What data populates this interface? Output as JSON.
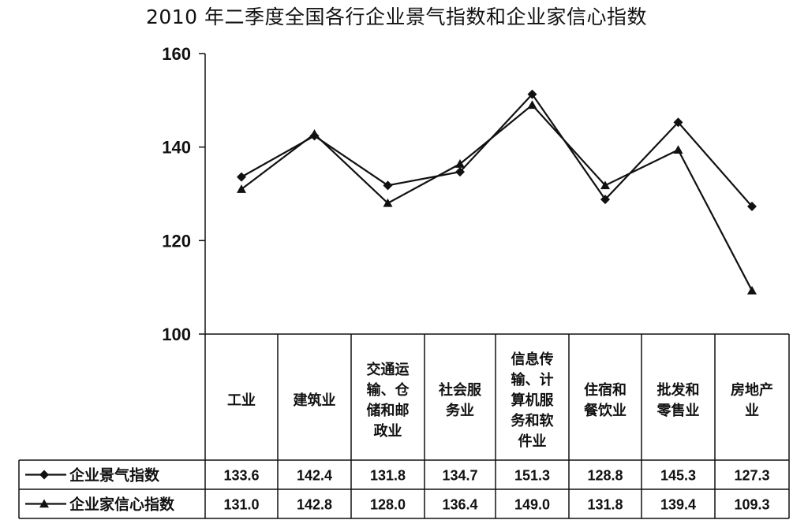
{
  "chart_data": {
    "type": "line",
    "title": "2010 年二季度全国各行企业景气指数和企业家信心指数",
    "categories": [
      [
        "工业"
      ],
      [
        "建筑业"
      ],
      [
        "交通运",
        "输、仓",
        "储和邮",
        "政业"
      ],
      [
        "社会服",
        "务业"
      ],
      [
        "信息传",
        "输、计",
        "算机服",
        "务和软",
        "件业"
      ],
      [
        "住宿和",
        "餐饮业"
      ],
      [
        "批发和",
        "零售业"
      ],
      [
        "房地产",
        "业"
      ]
    ],
    "series": [
      {
        "name": "企业景气指数",
        "marker": "diamond",
        "values": [
          133.6,
          142.4,
          131.8,
          134.7,
          151.3,
          128.8,
          145.3,
          127.3
        ],
        "labels": [
          "133.6",
          "142.4",
          "131.8",
          "134.7",
          "151.3",
          "128.8",
          "145.3",
          "127.3"
        ]
      },
      {
        "name": "企业家信心指数",
        "marker": "triangle",
        "values": [
          131.0,
          142.8,
          128.0,
          136.4,
          149.0,
          131.8,
          139.4,
          109.3
        ],
        "labels": [
          "131.0",
          "142.8",
          "128.0",
          "136.4",
          "149.0",
          "131.8",
          "139.4",
          "109.3"
        ]
      }
    ],
    "ylim": [
      100,
      160
    ],
    "yticks": [
      "100",
      "120",
      "140",
      "160"
    ],
    "ytick_values": [
      100,
      120,
      140,
      160
    ],
    "grid": false,
    "legend": "data-table",
    "line_color": "#111111"
  }
}
